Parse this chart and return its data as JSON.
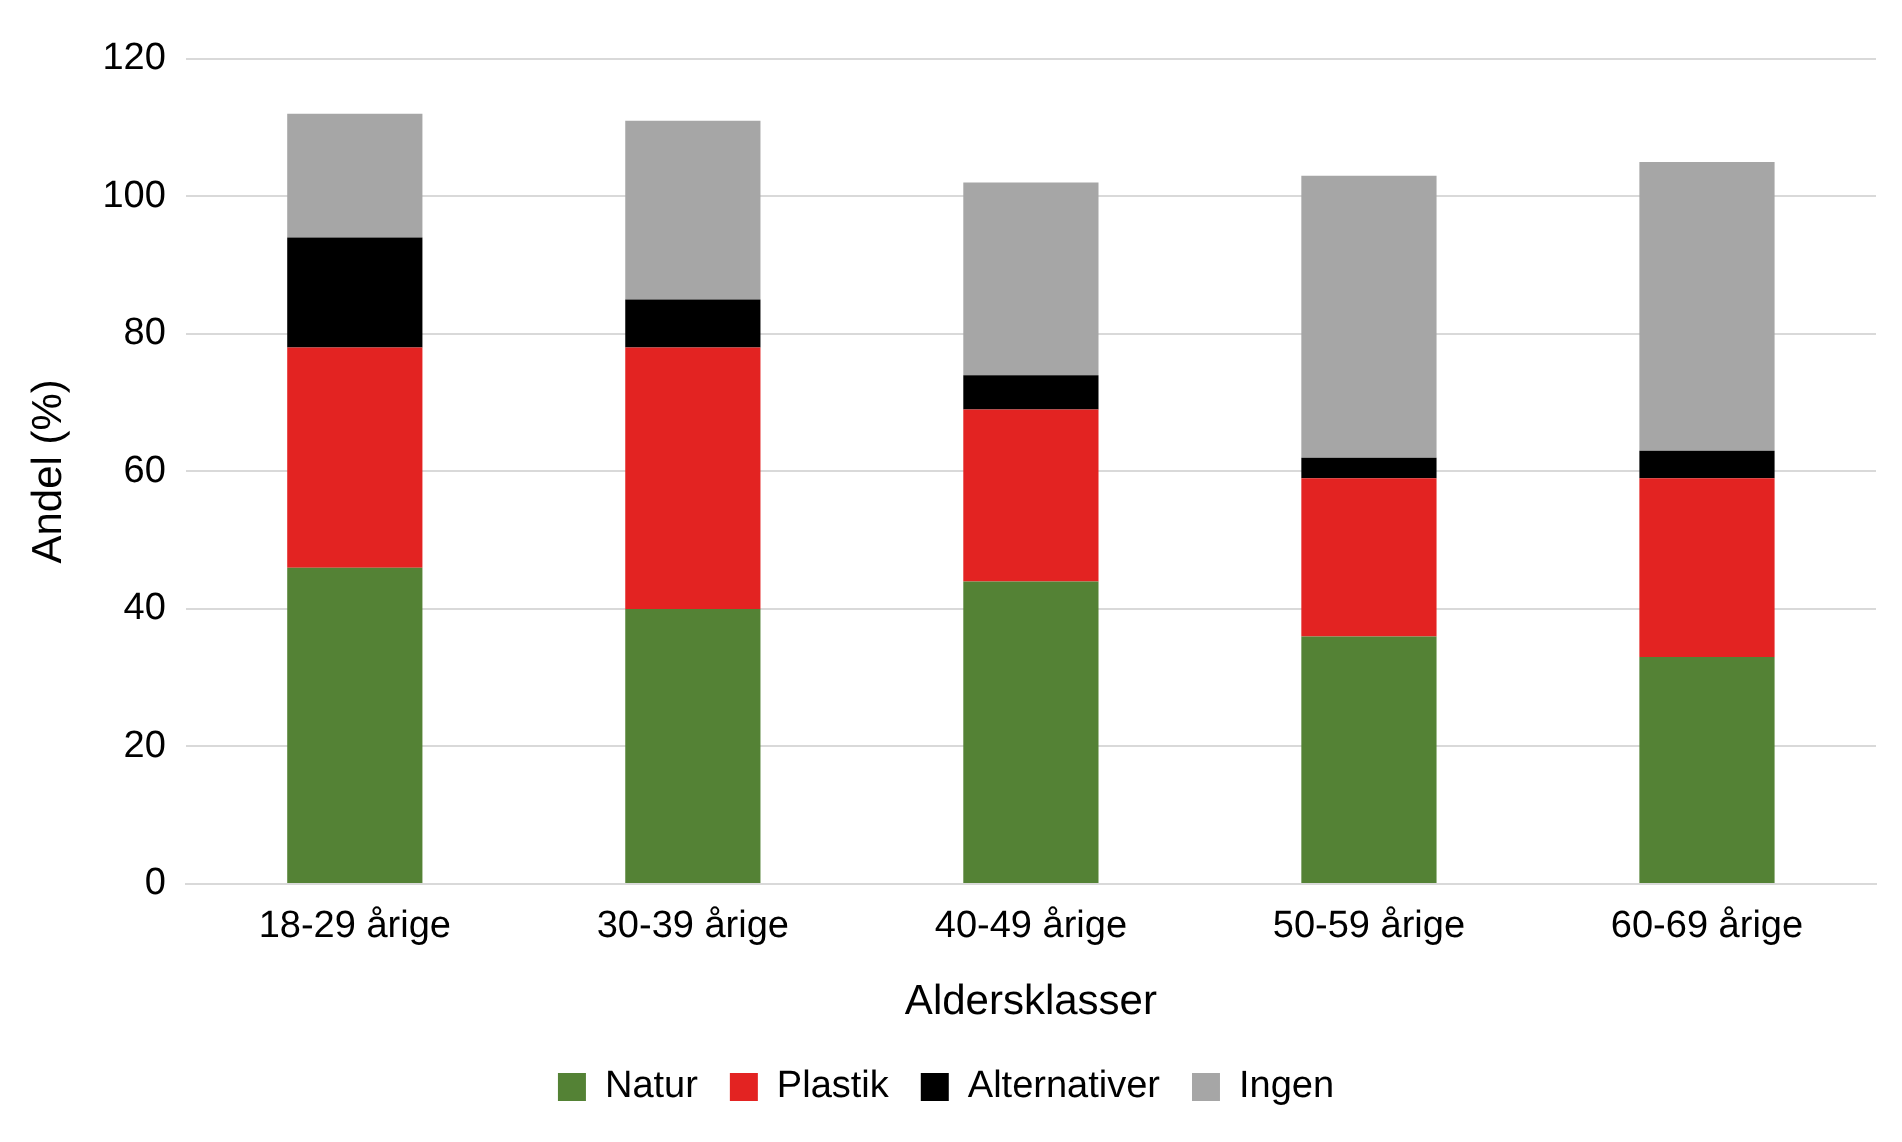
{
  "chart_data": {
    "type": "bar",
    "stacked": true,
    "xlabel": "Aldersklasser",
    "ylabel": "Andel (%)",
    "categories": [
      "18-29 årige",
      "30-39 årige",
      "40-49 årige",
      "50-59 årige",
      "60-69 årige"
    ],
    "series": [
      {
        "name": "Natur",
        "color": "#548235",
        "values": [
          46,
          40,
          44,
          36,
          33
        ]
      },
      {
        "name": "Plastik",
        "color": "#e32322",
        "values": [
          32,
          38,
          25,
          23,
          26
        ]
      },
      {
        "name": "Alternativer",
        "color": "#000000",
        "values": [
          16,
          7,
          5,
          3,
          4
        ]
      },
      {
        "name": "Ingen",
        "color": "#a6a6a6",
        "values": [
          18,
          26,
          28,
          41,
          42
        ]
      }
    ],
    "ylim": [
      0,
      120
    ],
    "yticks": [
      0,
      20,
      40,
      60,
      80,
      100,
      120
    ],
    "grid": "y",
    "legend": "bottom"
  }
}
